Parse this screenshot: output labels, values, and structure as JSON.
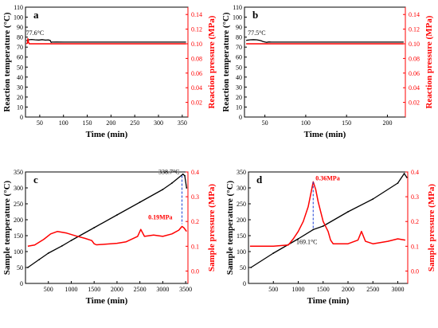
{
  "colors": {
    "left_series": "#000000",
    "right_series": "#ff0000",
    "marker_line": "#1a3fd6"
  },
  "chart_data": [
    {
      "panel": "a",
      "type": "line",
      "xlabel": "Time (min)",
      "ylabel": "Reaction temperature (°C)",
      "y2label": "Reaction pressure (MPa)",
      "xlim": [
        20,
        362
      ],
      "ylim": [
        0,
        110
      ],
      "y2lim": [
        0.0,
        0.15
      ],
      "xticks": [
        50,
        100,
        150,
        200,
        250,
        300,
        350
      ],
      "yticks": [
        0,
        10,
        20,
        30,
        40,
        50,
        60,
        70,
        80,
        90,
        100,
        110
      ],
      "y2ticks": [
        "0.02",
        "0.04",
        "0.06",
        "0.08",
        "0.10",
        "0.12",
        "0.14"
      ],
      "annotations": [
        {
          "text": "77.6°C",
          "x": 40,
          "y": 79
        }
      ],
      "series": [
        {
          "axis": "left",
          "color": "#000000",
          "x": [
            22,
            28,
            33,
            40,
            48,
            55,
            62,
            68,
            72,
            74,
            76,
            85,
            100,
            150,
            200,
            250,
            300,
            350,
            358
          ],
          "y": [
            76.5,
            77.4,
            77.6,
            77.3,
            77.1,
            77.5,
            77.0,
            77.2,
            76.8,
            74.8,
            75.0,
            75.1,
            75.0,
            75.0,
            75.0,
            75.0,
            75.0,
            75.0,
            75.0
          ]
        },
        {
          "axis": "right",
          "color": "#ff0000",
          "x": [
            22,
            24,
            25,
            26,
            27,
            28,
            30,
            35,
            50,
            100,
            200,
            300,
            358
          ],
          "y": [
            0.1,
            0.101,
            0.107,
            0.103,
            0.101,
            0.1,
            0.1,
            0.1,
            0.1,
            0.1,
            0.1,
            0.1,
            0.1
          ]
        }
      ]
    },
    {
      "panel": "b",
      "type": "line",
      "xlabel": "Time (min)",
      "ylabel": "Reaction temperature (°C)",
      "y2label": "Reaction pressure (MPa)",
      "xlim": [
        25,
        222
      ],
      "ylim": [
        0,
        110
      ],
      "y2lim": [
        0.0,
        0.15
      ],
      "xticks": [
        50,
        100,
        150,
        200
      ],
      "yticks": [
        0,
        10,
        20,
        30,
        40,
        50,
        60,
        70,
        80,
        90,
        100,
        110
      ],
      "y2ticks": [
        "0.02",
        "0.04",
        "0.06",
        "0.08",
        "0.10",
        "0.12",
        "0.14"
      ],
      "annotations": [
        {
          "text": "77.5°C",
          "x": 40,
          "y": 79
        }
      ],
      "series": [
        {
          "axis": "left",
          "color": "#000000",
          "x": [
            27,
            32,
            36,
            40,
            45,
            48,
            52,
            55,
            58,
            60,
            70,
            100,
            150,
            200,
            220
          ],
          "y": [
            76.8,
            77.3,
            77.5,
            77.3,
            76.5,
            75.5,
            74.8,
            75.2,
            75.0,
            75.0,
            75.0,
            75.0,
            75.0,
            75.0,
            75.0
          ]
        },
        {
          "axis": "right",
          "color": "#ff0000",
          "x": [
            27,
            50,
            100,
            150,
            200,
            220
          ],
          "y": [
            0.1,
            0.1,
            0.1,
            0.1,
            0.1,
            0.1
          ]
        }
      ]
    },
    {
      "panel": "c",
      "type": "line",
      "xlabel": "Time (min)",
      "ylabel": "Sample temperature (°C)",
      "y2label": "Sample pressure (MPa)",
      "xlim": [
        0,
        3550
      ],
      "ylim": [
        0,
        350
      ],
      "y2lim": [
        -0.05,
        0.4
      ],
      "xticks": [
        500,
        1000,
        1500,
        2000,
        2500,
        3000,
        3500
      ],
      "yticks": [
        0,
        50,
        100,
        150,
        200,
        250,
        300,
        350
      ],
      "y2ticks": [
        "0.0",
        "0.1",
        "0.2",
        "0.3",
        "0.4"
      ],
      "annotations": [
        {
          "text": "338.7°C",
          "x": 3420,
          "y": 338.7,
          "color": "#000000"
        },
        {
          "text": "0.19MPa",
          "x": 3420,
          "y2": 0.19,
          "color": "#ff0000"
        }
      ],
      "series": [
        {
          "axis": "left",
          "color": "#000000",
          "x": [
            50,
            300,
            500,
            800,
            1000,
            1500,
            2000,
            2500,
            3000,
            3200,
            3440,
            3480,
            3520
          ],
          "y": [
            50,
            75,
            95,
            118,
            135,
            175,
            215,
            255,
            295,
            315,
            343,
            338,
            300
          ]
        },
        {
          "axis": "right",
          "color": "#ff0000",
          "x": [
            50,
            200,
            400,
            550,
            700,
            900,
            1100,
            1300,
            1450,
            1500,
            1550,
            2000,
            2200,
            2450,
            2520,
            2600,
            2800,
            3000,
            3200,
            3350,
            3420,
            3460,
            3520
          ],
          "y": [
            0.1,
            0.105,
            0.128,
            0.15,
            0.16,
            0.153,
            0.142,
            0.132,
            0.123,
            0.11,
            0.106,
            0.112,
            0.118,
            0.14,
            0.168,
            0.14,
            0.145,
            0.14,
            0.15,
            0.165,
            0.18,
            0.175,
            0.16
          ]
        }
      ]
    },
    {
      "panel": "d",
      "type": "line",
      "xlabel": "Time (min)",
      "ylabel": "Sample temperature (°C)",
      "y2label": "Sample pressure (MPa)",
      "xlim": [
        0,
        3200
      ],
      "ylim": [
        0,
        350
      ],
      "y2lim": [
        -0.05,
        0.4
      ],
      "xticks": [
        500,
        1000,
        1500,
        2000,
        2500,
        3000
      ],
      "yticks": [
        0,
        50,
        100,
        150,
        200,
        250,
        300,
        350
      ],
      "y2ticks": [
        "0.0",
        "0.1",
        "0.2",
        "0.3",
        "0.4"
      ],
      "annotations": [
        {
          "text": "0.36MPa",
          "x": 1300,
          "y2": 0.36,
          "color": "#ff0000"
        },
        {
          "text": "169.1°C",
          "x": 1300,
          "y": 169.1,
          "color": "#000000"
        }
      ],
      "series": [
        {
          "axis": "left",
          "color": "#000000",
          "x": [
            50,
            500,
            1000,
            1300,
            1500,
            2000,
            2500,
            3000,
            3130,
            3180
          ],
          "y": [
            50,
            95,
            140,
            169,
            180,
            225,
            265,
            315,
            345,
            333
          ]
        },
        {
          "axis": "right",
          "color": "#ff0000",
          "x": [
            30,
            500,
            800,
            900,
            1000,
            1100,
            1200,
            1260,
            1300,
            1350,
            1400,
            1500,
            1600,
            1650,
            1700,
            2000,
            2200,
            2270,
            2350,
            2500,
            2800,
            3000,
            3150
          ],
          "y": [
            0.1,
            0.1,
            0.105,
            0.13,
            0.16,
            0.2,
            0.26,
            0.32,
            0.36,
            0.33,
            0.28,
            0.2,
            0.16,
            0.125,
            0.11,
            0.11,
            0.125,
            0.16,
            0.12,
            0.11,
            0.12,
            0.13,
            0.125
          ]
        }
      ]
    }
  ]
}
